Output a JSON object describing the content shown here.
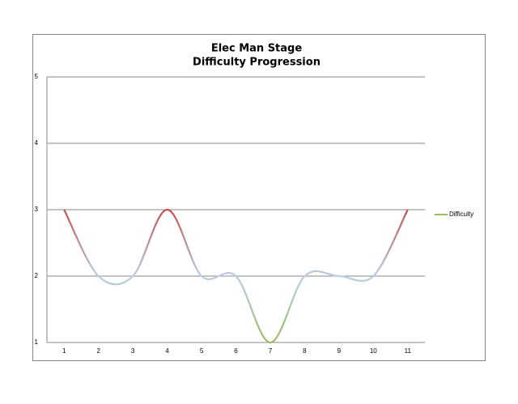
{
  "chart_data": {
    "type": "line",
    "title": [
      "Elec Man Stage",
      "Difficulty Progression"
    ],
    "categories": [
      "1",
      "2",
      "3",
      "4",
      "5",
      "6",
      "7",
      "8",
      "9",
      "10",
      "11"
    ],
    "series": [
      {
        "name": "Difficulty",
        "color": "#9bbb59",
        "values": [
          3,
          2,
          2,
          3,
          2,
          2,
          1,
          2,
          2,
          2,
          3
        ]
      }
    ],
    "gradient_colors": [
      "#9bbb59",
      "#b9cde5",
      "#c0504d"
    ],
    "smooth": true,
    "ylim": [
      1,
      5
    ],
    "yticks": [
      1,
      2,
      3,
      4,
      5
    ],
    "grid": true,
    "legend": "right"
  }
}
